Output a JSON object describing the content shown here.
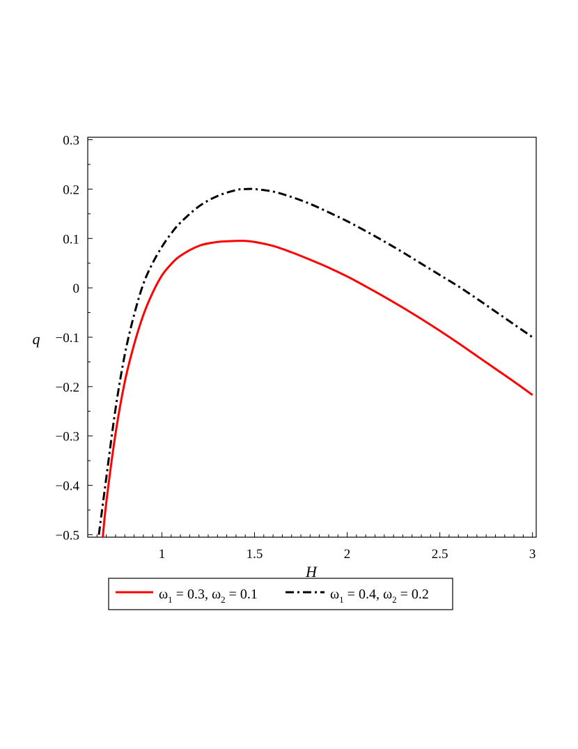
{
  "chart_data": {
    "type": "line",
    "xlabel": "H",
    "ylabel": "q",
    "xlim": [
      0.6,
      3.02
    ],
    "ylim": [
      -0.505,
      0.305
    ],
    "x_ticks": [
      1,
      1.5,
      2,
      2.5,
      3
    ],
    "x_tick_labels": [
      "1",
      "1.5",
      "2",
      "2.5",
      "3"
    ],
    "y_ticks": [
      0.3,
      0.2,
      0.1,
      0,
      -0.1,
      -0.2,
      -0.3,
      -0.4,
      -0.5
    ],
    "y_tick_labels": [
      "0.3",
      "0.2",
      "0.1",
      "0",
      "−0.1",
      "−0.2",
      "−0.3",
      "−0.4",
      "−0.5"
    ],
    "grid": false,
    "legend_position": "bottom",
    "series": [
      {
        "name": "ω₁ = 0.3, ω₂ = 0.1",
        "legend": {
          "w1": "0.3",
          "w2": "0.1"
        },
        "color": "#ff0000",
        "dash": "solid",
        "x": [
          0.68,
          0.7,
          0.75,
          0.8,
          0.85,
          0.9,
          0.95,
          1.0,
          1.05,
          1.1,
          1.2,
          1.3,
          1.4,
          1.45,
          1.5,
          1.6,
          1.7,
          1.8,
          1.9,
          2.0,
          2.1,
          2.2,
          2.3,
          2.4,
          2.5,
          2.6,
          2.7,
          2.8,
          2.9,
          3.0
        ],
        "y": [
          -0.51,
          -0.435,
          -0.295,
          -0.19,
          -0.115,
          -0.055,
          -0.01,
          0.025,
          0.048,
          0.065,
          0.085,
          0.093,
          0.095,
          0.095,
          0.093,
          0.085,
          0.072,
          0.057,
          0.041,
          0.023,
          0.003,
          -0.018,
          -0.04,
          -0.063,
          -0.087,
          -0.112,
          -0.138,
          -0.164,
          -0.19,
          -0.217
        ]
      },
      {
        "name": "ω₁ = 0.4, ω₂ = 0.2",
        "legend": {
          "w1": "0.4",
          "w2": "0.2"
        },
        "color": "#000000",
        "dash": "dashdot",
        "x": [
          0.66,
          0.7,
          0.75,
          0.8,
          0.85,
          0.9,
          0.95,
          1.0,
          1.05,
          1.1,
          1.2,
          1.3,
          1.4,
          1.45,
          1.5,
          1.6,
          1.7,
          1.8,
          1.9,
          2.0,
          2.1,
          2.2,
          2.3,
          2.4,
          2.5,
          2.6,
          2.7,
          2.8,
          2.9,
          3.0
        ],
        "y": [
          -0.5,
          -0.385,
          -0.245,
          -0.135,
          -0.055,
          0.008,
          0.05,
          0.083,
          0.11,
          0.132,
          0.165,
          0.186,
          0.198,
          0.2,
          0.2,
          0.195,
          0.184,
          0.17,
          0.153,
          0.135,
          0.115,
          0.094,
          0.072,
          0.049,
          0.026,
          0.003,
          -0.022,
          -0.048,
          -0.074,
          -0.1
        ]
      }
    ]
  }
}
